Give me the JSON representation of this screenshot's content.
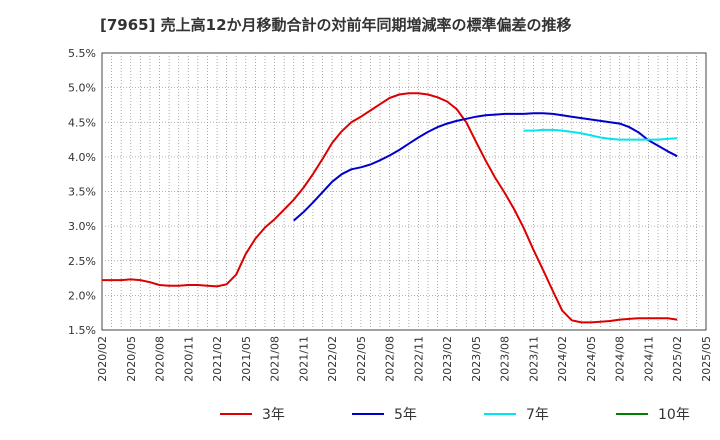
{
  "title": "[7965]  売上高12か月移動合計の対前年同期増減率の標準偏差の推移",
  "chart_data": {
    "type": "line",
    "title": "[7965]  売上高12か月移動合計の対前年同期増減率の標準偏差の推移",
    "xlabel": "",
    "ylabel": "",
    "ylim": [
      1.5,
      5.5
    ],
    "y_ticks": [
      "1.5%",
      "2.0%",
      "2.5%",
      "3.0%",
      "3.5%",
      "4.0%",
      "4.5%",
      "5.0%",
      "5.5%"
    ],
    "x_ticks": [
      "2020/02",
      "2020/05",
      "2020/08",
      "2020/11",
      "2021/02",
      "2021/05",
      "2021/08",
      "2021/11",
      "2022/02",
      "2022/05",
      "2022/08",
      "2022/11",
      "2023/02",
      "2023/05",
      "2023/08",
      "2023/11",
      "2024/02",
      "2024/05",
      "2024/08",
      "2024/11",
      "2025/02",
      "2025/05"
    ],
    "grid": true,
    "legend_position": "bottom",
    "series": [
      {
        "name": "3年",
        "color": "#dd0000",
        "start": "2020/02",
        "values": [
          2.22,
          2.22,
          2.22,
          2.23,
          2.22,
          2.19,
          2.15,
          2.14,
          2.14,
          2.15,
          2.15,
          2.14,
          2.13,
          2.16,
          2.3,
          2.6,
          2.82,
          2.98,
          3.1,
          3.24,
          3.38,
          3.55,
          3.75,
          3.97,
          4.2,
          4.37,
          4.5,
          4.58,
          4.67,
          4.76,
          4.85,
          4.9,
          4.92,
          4.92,
          4.9,
          4.86,
          4.8,
          4.69,
          4.5,
          4.22,
          3.95,
          3.7,
          3.48,
          3.24,
          2.97,
          2.66,
          2.37,
          2.07,
          1.78,
          1.64,
          1.61,
          1.61,
          1.62,
          1.63,
          1.65,
          1.66,
          1.67,
          1.67,
          1.67,
          1.67,
          1.65
        ]
      },
      {
        "name": "5年",
        "color": "#0000cc",
        "start": "2021/10",
        "values": [
          3.08,
          3.2,
          3.34,
          3.49,
          3.64,
          3.75,
          3.82,
          3.85,
          3.89,
          3.95,
          4.02,
          4.1,
          4.19,
          4.28,
          4.36,
          4.43,
          4.48,
          4.52,
          4.55,
          4.58,
          4.6,
          4.61,
          4.62,
          4.62,
          4.62,
          4.63,
          4.63,
          4.62,
          4.6,
          4.58,
          4.56,
          4.54,
          4.52,
          4.5,
          4.48,
          4.43,
          4.35,
          4.24,
          4.16,
          4.08,
          4.01
        ]
      },
      {
        "name": "7年",
        "color": "#00e5ee",
        "start": "2023/10",
        "values": [
          4.38,
          4.38,
          4.39,
          4.39,
          4.38,
          4.36,
          4.34,
          4.31,
          4.28,
          4.26,
          4.25,
          4.25,
          4.25,
          4.25,
          4.25,
          4.26,
          4.27
        ]
      },
      {
        "name": "10年",
        "color": "#008000",
        "start": "2025/02",
        "values": []
      }
    ]
  }
}
